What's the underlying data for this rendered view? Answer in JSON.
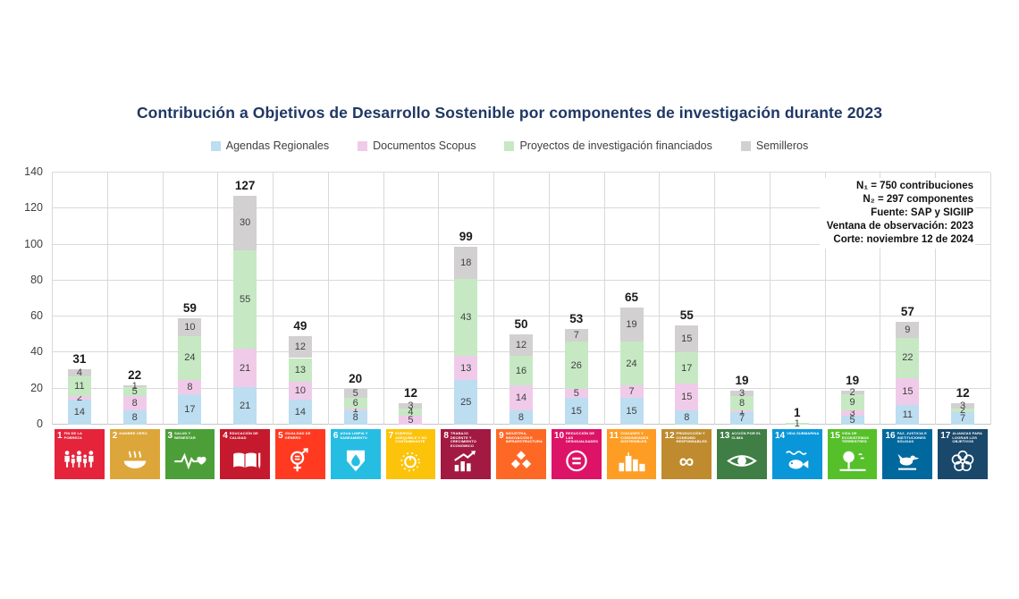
{
  "title": "Contribución a Objetivos de Desarrollo Sostenible  por componentes de investigación durante 2023",
  "legend": {
    "items": [
      {
        "label": "Agendas Regionales",
        "color": "#BDDDF0"
      },
      {
        "label": "Documentos Scopus",
        "color": "#F0CBE9"
      },
      {
        "label": "Proyectos de investigación financiados",
        "color": "#C6E9C4"
      },
      {
        "label": "Semilleros",
        "color": "#D2D0D0"
      }
    ]
  },
  "annotation": {
    "lines": [
      "N₁ = 750 contribuciones",
      "N₂ = 297 componentes",
      "Fuente: SAP y SIGIIP",
      "Ventana de observación: 2023",
      "Corte: noviembre 12 de 2024"
    ]
  },
  "chart_data": {
    "type": "bar",
    "stacked": true,
    "title": "Contribución a Objetivos de Desarrollo Sostenible  por componentes de investigación durante 2023",
    "xlabel": "",
    "ylabel": "",
    "ylim": [
      0,
      140
    ],
    "yticks": [
      0,
      20,
      40,
      60,
      80,
      100,
      120,
      140
    ],
    "grid": true,
    "legend_position": "top",
    "categories": [
      {
        "number": "1",
        "name": "FIN DE LA POBREZA",
        "color": "#E5243B",
        "icon": "people-icon"
      },
      {
        "number": "2",
        "name": "HAMBRE CERO",
        "color": "#DDA63A",
        "icon": "bowl-icon"
      },
      {
        "number": "3",
        "name": "SALUD Y BIENESTAR",
        "color": "#4C9F38",
        "icon": "heartbeat-icon"
      },
      {
        "number": "4",
        "name": "EDUCACIÓN DE CALIDAD",
        "color": "#C5192D",
        "icon": "book-icon"
      },
      {
        "number": "5",
        "name": "IGUALDAD DE GÉNERO",
        "color": "#FF3A21",
        "icon": "gender-equality-icon"
      },
      {
        "number": "6",
        "name": "AGUA LIMPIA Y SANEAMIENTO",
        "color": "#26BDE2",
        "icon": "water-drop-icon"
      },
      {
        "number": "7",
        "name": "ENERGÍA ASEQUIBLE Y NO CONTAMINANTE",
        "color": "#FCC30B",
        "icon": "sun-energy-icon"
      },
      {
        "number": "8",
        "name": "TRABAJO DECENTE Y CRECIMIENTO ECONÓMICO",
        "color": "#A21942",
        "icon": "growth-chart-icon"
      },
      {
        "number": "9",
        "name": "INDUSTRIA, INNOVACIÓN E INFRAESTRUCTURA",
        "color": "#FD6925",
        "icon": "cubes-icon"
      },
      {
        "number": "10",
        "name": "REDUCCIÓN DE LAS DESIGUALDADES",
        "color": "#DD1367",
        "icon": "equality-icon"
      },
      {
        "number": "11",
        "name": "CIUDADES Y COMUNIDADES SOSTENIBLES",
        "color": "#FD9D24",
        "icon": "city-icon"
      },
      {
        "number": "12",
        "name": "PRODUCCIÓN Y CONSUMO RESPONSABLES",
        "color": "#BF8B2E",
        "icon": "infinity-icon"
      },
      {
        "number": "13",
        "name": "ACCIÓN POR EL CLIMA",
        "color": "#3F7E44",
        "icon": "eye-globe-icon"
      },
      {
        "number": "14",
        "name": "VIDA SUBMARINA",
        "color": "#0A97D9",
        "icon": "fish-icon"
      },
      {
        "number": "15",
        "name": "VIDA DE ECOSISTEMAS TERRESTRES",
        "color": "#56C02B",
        "icon": "tree-icon"
      },
      {
        "number": "16",
        "name": "PAZ, JUSTICIA E INSTITUCIONES SÓLIDAS",
        "color": "#00689D",
        "icon": "dove-icon"
      },
      {
        "number": "17",
        "name": "ALIANZAS PARA LOGRAR LOS OBJETIVOS",
        "color": "#19486A",
        "icon": "interlocking-circles-icon"
      }
    ],
    "series": [
      {
        "name": "Agendas Regionales",
        "color": "#BDDDF0",
        "values": [
          14,
          8,
          17,
          21,
          14,
          8,
          0,
          25,
          8,
          15,
          15,
          8,
          7,
          0,
          5,
          11,
          7
        ]
      },
      {
        "name": "Documentos Scopus",
        "color": "#F0CBE9",
        "values": [
          2,
          8,
          8,
          21,
          10,
          1,
          5,
          13,
          14,
          5,
          7,
          15,
          1,
          0,
          3,
          15,
          0
        ]
      },
      {
        "name": "Proyectos de investigación financiados",
        "color": "#C6E9C4",
        "values": [
          11,
          5,
          24,
          55,
          13,
          6,
          4,
          43,
          16,
          26,
          24,
          17,
          8,
          1,
          9,
          22,
          2
        ]
      },
      {
        "name": "Semilleros",
        "color": "#D2D0D0",
        "values": [
          4,
          1,
          10,
          30,
          12,
          5,
          3,
          18,
          12,
          7,
          19,
          15,
          3,
          0,
          2,
          9,
          3
        ]
      }
    ],
    "totals": [
      31,
      22,
      59,
      127,
      49,
      20,
      12,
      99,
      50,
      53,
      65,
      55,
      19,
      1,
      19,
      57,
      12
    ]
  }
}
